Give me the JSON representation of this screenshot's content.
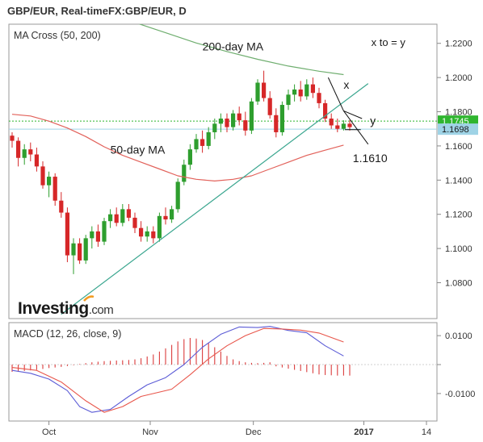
{
  "header": {
    "title": "GBP/EUR, Real-timeFX:GBP/EUR, D"
  },
  "brand": {
    "name_a": "Investing",
    "name_b": ".com"
  },
  "colors": {
    "up": "#2e9e2e",
    "down": "#d62728",
    "ma50": "#e2615a",
    "ma200": "#6fae6f",
    "trendline": "#3aa68f",
    "macd": "#5b5bd6",
    "signal": "#e8564b",
    "price_tag": "#2fb52f",
    "mid_tag": "#9fd3e6"
  },
  "chart_data": [
    {
      "type": "candlestick",
      "legend": "MA Cross (50, 200)",
      "x_tick_labels": [
        "Oct",
        "Nov",
        "Dec",
        "2017",
        "14"
      ],
      "y_ticks": [
        1.08,
        1.1,
        1.12,
        1.14,
        1.16,
        1.18,
        1.2,
        1.22
      ],
      "y_tick_labels": [
        "1.0800",
        "1.1000",
        "1.1200",
        "1.1400",
        "1.1600",
        "1.1800",
        "1.2000",
        "1.2200"
      ],
      "ylim": [
        1.059,
        1.2312
      ],
      "price_tags": [
        {
          "label": "1.1745",
          "value": 1.1745
        },
        {
          "label": "1.1698",
          "value": 1.1698
        }
      ],
      "annotations": [
        {
          "text": "200-day MA"
        },
        {
          "text": "50-day MA"
        },
        {
          "text": "x to = y"
        },
        {
          "text": "x"
        },
        {
          "text": "y"
        },
        {
          "text": "1.1610"
        }
      ],
      "candles": [
        [
          1.166,
          1.168,
          1.159,
          1.163
        ],
        [
          1.163,
          1.165,
          1.148,
          1.153
        ],
        [
          1.153,
          1.161,
          1.149,
          1.158
        ],
        [
          1.158,
          1.162,
          1.151,
          1.155
        ],
        [
          1.155,
          1.159,
          1.145,
          1.148
        ],
        [
          1.148,
          1.151,
          1.135,
          1.137
        ],
        [
          1.137,
          1.145,
          1.13,
          1.142
        ],
        [
          1.142,
          1.144,
          1.125,
          1.128
        ],
        [
          1.128,
          1.133,
          1.118,
          1.121
        ],
        [
          1.121,
          1.124,
          1.092,
          1.096
        ],
        [
          1.096,
          1.106,
          1.085,
          1.103
        ],
        [
          1.103,
          1.106,
          1.091,
          1.093
        ],
        [
          1.093,
          1.108,
          1.091,
          1.106
        ],
        [
          1.106,
          1.113,
          1.1,
          1.11
        ],
        [
          1.11,
          1.114,
          1.101,
          1.104
        ],
        [
          1.104,
          1.118,
          1.102,
          1.116
        ],
        [
          1.116,
          1.123,
          1.112,
          1.12
        ],
        [
          1.12,
          1.124,
          1.113,
          1.115
        ],
        [
          1.115,
          1.126,
          1.113,
          1.123
        ],
        [
          1.123,
          1.126,
          1.116,
          1.118
        ],
        [
          1.118,
          1.121,
          1.109,
          1.112
        ],
        [
          1.112,
          1.116,
          1.104,
          1.107
        ],
        [
          1.107,
          1.113,
          1.104,
          1.11
        ],
        [
          1.11,
          1.113,
          1.103,
          1.106
        ],
        [
          1.106,
          1.121,
          1.104,
          1.119
        ],
        [
          1.119,
          1.124,
          1.114,
          1.117
        ],
        [
          1.117,
          1.125,
          1.115,
          1.123
        ],
        [
          1.123,
          1.141,
          1.121,
          1.139
        ],
        [
          1.139,
          1.152,
          1.137,
          1.149
        ],
        [
          1.149,
          1.161,
          1.146,
          1.158
        ],
        [
          1.158,
          1.167,
          1.156,
          1.164
        ],
        [
          1.164,
          1.169,
          1.156,
          1.16
        ],
        [
          1.16,
          1.171,
          1.158,
          1.168
        ],
        [
          1.168,
          1.176,
          1.164,
          1.173
        ],
        [
          1.173,
          1.179,
          1.168,
          1.176
        ],
        [
          1.176,
          1.179,
          1.168,
          1.171
        ],
        [
          1.171,
          1.181,
          1.169,
          1.179
        ],
        [
          1.179,
          1.183,
          1.172,
          1.175
        ],
        [
          1.175,
          1.18,
          1.166,
          1.169
        ],
        [
          1.169,
          1.188,
          1.167,
          1.186
        ],
        [
          1.186,
          1.199,
          1.184,
          1.197
        ],
        [
          1.197,
          1.204,
          1.186,
          1.188
        ],
        [
          1.188,
          1.192,
          1.176,
          1.178
        ],
        [
          1.178,
          1.182,
          1.165,
          1.168
        ],
        [
          1.168,
          1.186,
          1.166,
          1.184
        ],
        [
          1.184,
          1.193,
          1.181,
          1.19
        ],
        [
          1.19,
          1.196,
          1.186,
          1.193
        ],
        [
          1.193,
          1.198,
          1.186,
          1.189
        ],
        [
          1.189,
          1.199,
          1.187,
          1.196
        ],
        [
          1.196,
          1.2,
          1.188,
          1.191
        ],
        [
          1.191,
          1.194,
          1.182,
          1.185
        ],
        [
          1.185,
          1.187,
          1.174,
          1.176
        ],
        [
          1.176,
          1.179,
          1.17,
          1.172
        ],
        [
          1.172,
          1.176,
          1.168,
          1.17
        ],
        [
          1.17,
          1.175,
          1.169,
          1.173
        ],
        [
          1.173,
          1.175,
          1.169,
          1.171
        ]
      ],
      "ma50": [
        [
          0,
          1.1785
        ],
        [
          3,
          1.1775
        ],
        [
          6,
          1.1745
        ],
        [
          9,
          1.1705
        ],
        [
          12,
          1.1655
        ],
        [
          15,
          1.1595
        ],
        [
          18,
          1.1545
        ],
        [
          21,
          1.1505
        ],
        [
          24,
          1.1465
        ],
        [
          27,
          1.1425
        ],
        [
          30,
          1.1405
        ],
        [
          33,
          1.1395
        ],
        [
          36,
          1.1405
        ],
        [
          39,
          1.1425
        ],
        [
          42,
          1.1465
        ],
        [
          45,
          1.1505
        ],
        [
          48,
          1.1545
        ],
        [
          51,
          1.1575
        ],
        [
          54,
          1.1605
        ]
      ],
      "ma200": [
        [
          20,
          1.2322
        ],
        [
          25,
          1.2262
        ],
        [
          30,
          1.2202
        ],
        [
          35,
          1.2152
        ],
        [
          40,
          1.2107
        ],
        [
          45,
          1.2067
        ],
        [
          50,
          1.2037
        ],
        [
          54,
          1.2017
        ]
      ],
      "trendline": [
        [
          8,
          1.0615
        ],
        [
          58,
          1.1965
        ]
      ]
    },
    {
      "type": "line",
      "legend": "MACD (12, 26, close, 9)",
      "y_ticks": [
        0.01,
        0,
        -0.01
      ],
      "y_tick_labels": [
        "0.0100",
        "-0.0100"
      ],
      "ylim": [
        -0.0195,
        0.0145
      ],
      "series": [
        {
          "values": [
            [
              0,
              -0.002
            ],
            [
              3,
              -0.003
            ],
            [
              6,
              -0.005
            ],
            [
              9,
              -0.009
            ],
            [
              11,
              -0.0145
            ],
            [
              13,
              -0.0165
            ],
            [
              16,
              -0.0155
            ],
            [
              19,
              -0.011
            ],
            [
              22,
              -0.007
            ],
            [
              25,
              -0.0045
            ],
            [
              28,
              0.0
            ],
            [
              31,
              0.006
            ],
            [
              34,
              0.0105
            ],
            [
              37,
              0.013
            ],
            [
              40,
              0.0128
            ],
            [
              42,
              0.0132
            ],
            [
              45,
              0.0118
            ],
            [
              48,
              0.011
            ],
            [
              51,
              0.0065
            ],
            [
              54,
              0.003
            ]
          ]
        },
        {
          "values": [
            [
              0,
              -0.001
            ],
            [
              4,
              -0.002
            ],
            [
              8,
              -0.006
            ],
            [
              12,
              -0.0125
            ],
            [
              15,
              -0.0165
            ],
            [
              18,
              -0.0145
            ],
            [
              21,
              -0.011
            ],
            [
              24,
              -0.0095
            ],
            [
              26,
              -0.0085
            ],
            [
              29,
              -0.0035
            ],
            [
              32,
              0.002
            ],
            [
              35,
              0.0065
            ],
            [
              38,
              0.01
            ],
            [
              41,
              0.0125
            ],
            [
              44,
              0.0123
            ],
            [
              47,
              0.0119
            ],
            [
              50,
              0.0109
            ],
            [
              54,
              0.0078
            ]
          ]
        }
      ],
      "histogram": [
        -0.0025,
        -0.0024,
        -0.0022,
        -0.002,
        -0.0018,
        -0.0015,
        -0.0012,
        -0.001,
        -0.0008,
        -0.0005,
        -0.0002,
        0.0002,
        0.0005,
        0.0008,
        0.001,
        0.0012,
        0.0013,
        0.0014,
        0.0015,
        0.0016,
        0.0018,
        0.0022,
        0.0028,
        0.0035,
        0.0045,
        0.0056,
        0.0068,
        0.008,
        0.0088,
        0.0092,
        0.009,
        0.0085,
        0.0075,
        0.006,
        0.0045,
        0.003,
        0.0018,
        0.0012,
        0.0008,
        0.0006,
        0.0005,
        0.0006,
        0.0008,
        -0.0006,
        -0.001,
        -0.0014,
        -0.0018,
        -0.0022,
        -0.0026,
        -0.003,
        -0.0034,
        -0.0036,
        -0.0037,
        -0.0038,
        -0.0038,
        -0.0038
      ]
    }
  ]
}
